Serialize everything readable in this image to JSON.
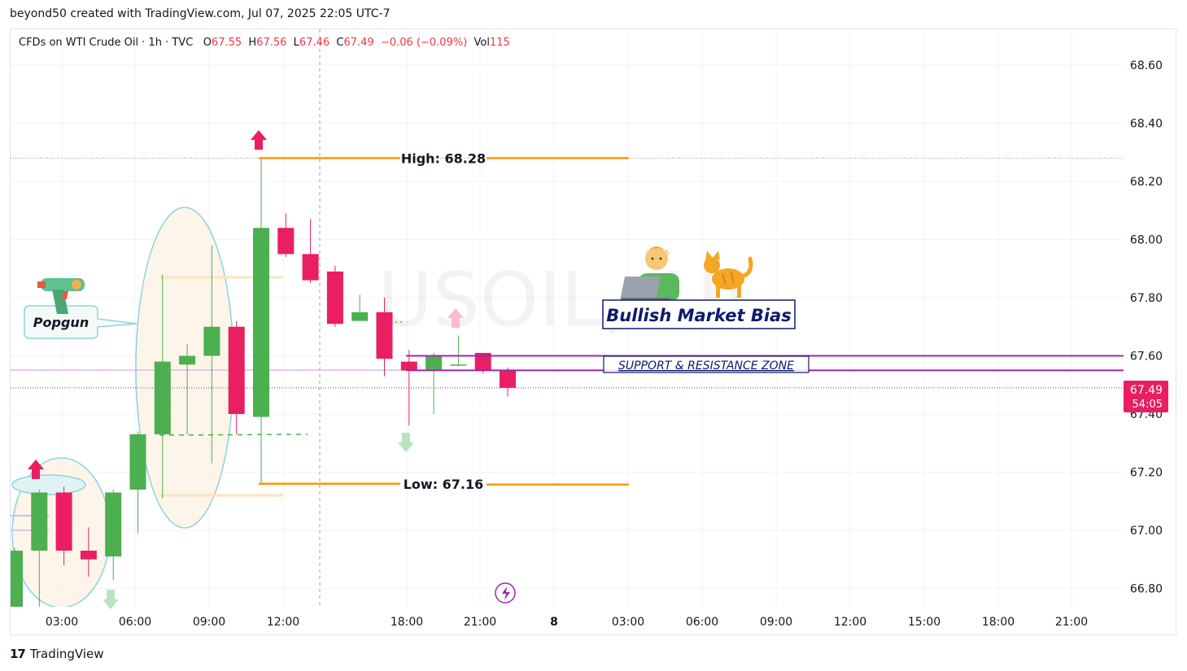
{
  "header": {
    "attribution": "beyond50 created with TradingView.com, Jul 07, 2025 22:05 UTC-7"
  },
  "legend": {
    "symbol": "CFDs on WTI Crude Oil · 1h · TVC",
    "o_label": "O",
    "o": "67.55",
    "h_label": "H",
    "h": "67.56",
    "l_label": "L",
    "l": "67.46",
    "c_label": "C",
    "c": "67.49",
    "change": "−0.06 (−0.09%)",
    "vol_label": "Vol",
    "vol": "115"
  },
  "watermark": "USOIL, 1h",
  "annotations": {
    "high": "High: 68.28",
    "low": "Low: 67.16",
    "popgun": "Popgun",
    "bias": "Bullish Market Bias",
    "zone": "SUPPORT & RESISTANCE ZONE",
    "price_tag": "67.49",
    "countdown": "54:05"
  },
  "footer": {
    "brand": "TradingView",
    "logo": "17"
  },
  "colors": {
    "up": "#4caf50",
    "down": "#e91e63",
    "orange": "#ff9800",
    "purple": "#9c27b0",
    "navy": "#0d1b6e",
    "teal": "#8fd3d9"
  },
  "chart_data": {
    "type": "candlestick",
    "title": "CFDs on WTI Crude Oil · 1h · TVC",
    "x_tick_labels": [
      "03:00",
      "06:00",
      "09:00",
      "12:00",
      "18:00",
      "21:00",
      "8",
      "03:00",
      "06:00",
      "09:00",
      "12:00",
      "15:00",
      "18:00",
      "21:00"
    ],
    "y_tick_labels": [
      "68.60",
      "68.40",
      "68.20",
      "68.00",
      "67.80",
      "67.60",
      "67.40",
      "67.20",
      "67.00",
      "66.80"
    ],
    "ylim": [
      66.74,
      68.68
    ],
    "candles": [
      {
        "t": "02:00",
        "o": 66.73,
        "h": 66.94,
        "l": 66.73,
        "c": 66.93
      },
      {
        "t": "03:00",
        "o": 66.93,
        "h": 67.14,
        "l": 66.73,
        "c": 67.13
      },
      {
        "t": "04:00",
        "o": 67.13,
        "h": 67.15,
        "l": 66.88,
        "c": 66.93
      },
      {
        "t": "05:00",
        "o": 66.93,
        "h": 67.01,
        "l": 66.84,
        "c": 66.9
      },
      {
        "t": "06:00",
        "o": 66.91,
        "h": 67.14,
        "l": 66.83,
        "c": 67.13
      },
      {
        "t": "07:00",
        "o": 67.14,
        "h": 67.34,
        "l": 66.99,
        "c": 67.33
      },
      {
        "t": "08:00",
        "o": 67.33,
        "h": 67.88,
        "l": 67.11,
        "c": 67.58
      },
      {
        "t": "09:00",
        "o": 67.57,
        "h": 67.64,
        "l": 67.33,
        "c": 67.6
      },
      {
        "t": "10:00",
        "o": 67.6,
        "h": 67.98,
        "l": 67.23,
        "c": 67.7
      },
      {
        "t": "11:00",
        "o": 67.7,
        "h": 67.72,
        "l": 67.33,
        "c": 67.4
      },
      {
        "t": "12:00",
        "o": 67.39,
        "h": 68.28,
        "l": 67.16,
        "c": 68.04
      },
      {
        "t": "13:00",
        "o": 68.04,
        "h": 68.09,
        "l": 67.94,
        "c": 67.95
      },
      {
        "t": "14:00",
        "o": 67.95,
        "h": 68.07,
        "l": 67.85,
        "c": 67.86
      },
      {
        "t": "15:00",
        "o": 67.89,
        "h": 67.91,
        "l": 67.7,
        "c": 67.71
      },
      {
        "t": "16:00",
        "o": 67.72,
        "h": 67.81,
        "l": 67.72,
        "c": 67.75
      },
      {
        "t": "17:00",
        "o": 67.75,
        "h": 67.8,
        "l": 67.53,
        "c": 67.59
      },
      {
        "t": "18:00",
        "o": 67.58,
        "h": 67.62,
        "l": 67.36,
        "c": 67.55
      },
      {
        "t": "19:00",
        "o": 67.55,
        "h": 67.61,
        "l": 67.4,
        "c": 67.6
      },
      {
        "t": "20:00",
        "o": 67.57,
        "h": 67.67,
        "l": 67.57,
        "c": 67.57
      },
      {
        "t": "21:00",
        "o": 67.61,
        "h": 67.61,
        "l": 67.54,
        "c": 67.55
      },
      {
        "t": "22:00",
        "o": 67.55,
        "h": 67.56,
        "l": 67.46,
        "c": 67.49
      }
    ],
    "high_level": 68.28,
    "low_level": 67.16,
    "zone_upper": 67.6,
    "zone_lower": 67.55,
    "last_price": 67.49
  }
}
